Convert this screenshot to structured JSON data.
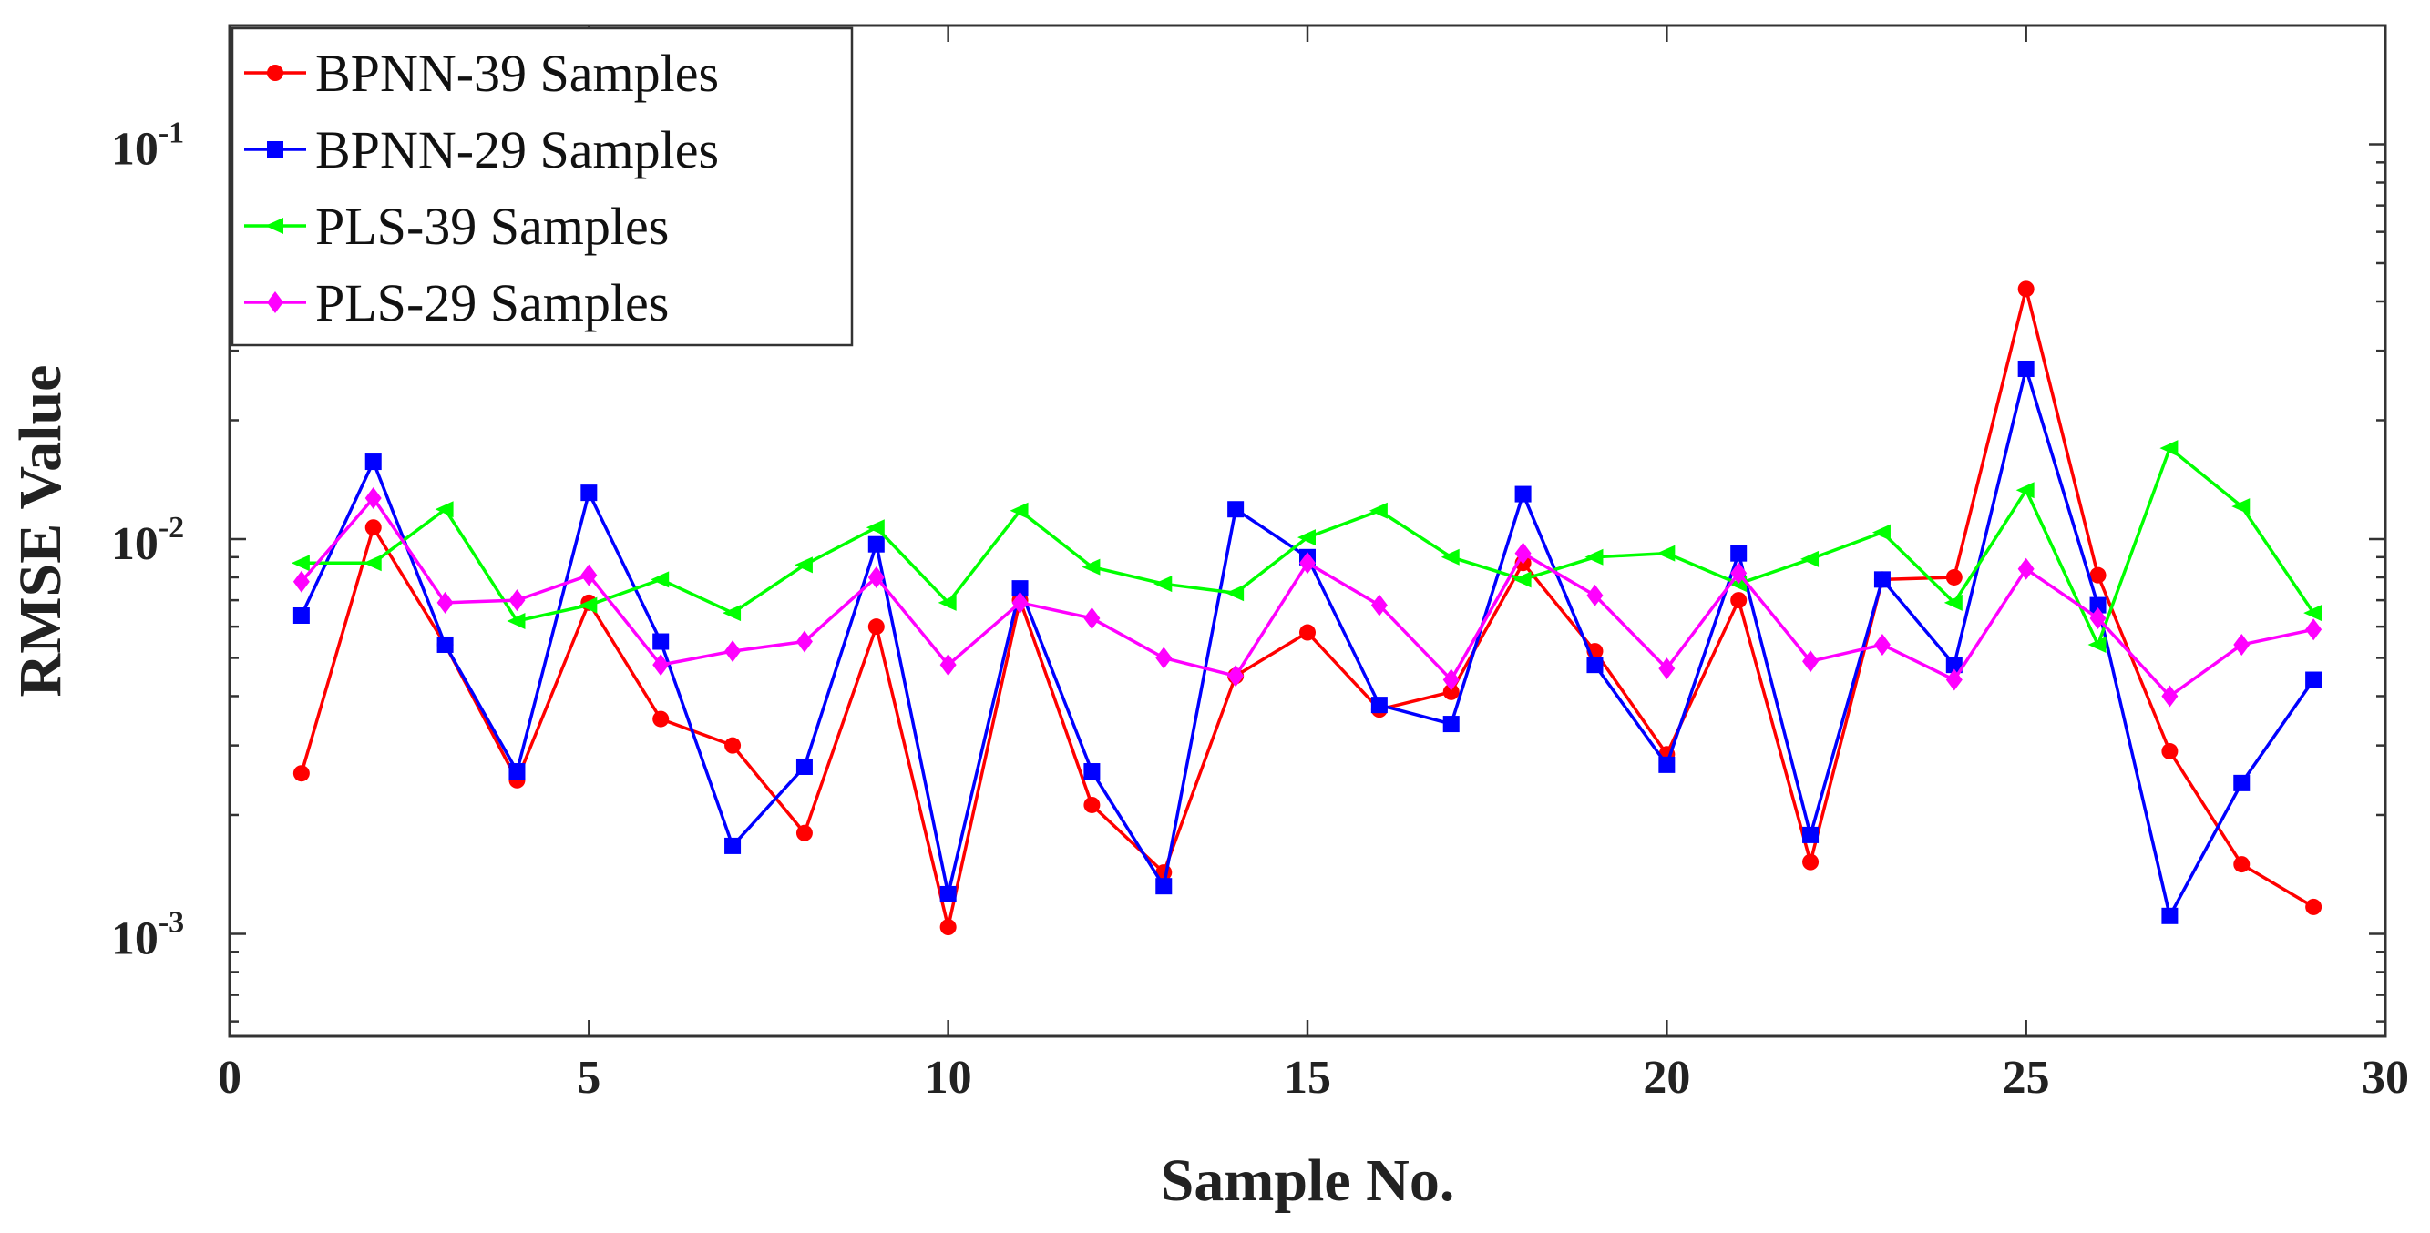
{
  "chart_data": {
    "type": "line",
    "title": "",
    "xlabel": "Sample No.",
    "ylabel": "RMSE Value",
    "yscale": "log",
    "xlim": [
      0,
      30
    ],
    "ylim": [
      0.00055,
      0.2
    ],
    "xticks": [
      0,
      5,
      10,
      15,
      20,
      25,
      30
    ],
    "yticks": [
      {
        "value": 0.1,
        "base": "10",
        "exp": "-1"
      },
      {
        "value": 0.01,
        "base": "10",
        "exp": "-2"
      },
      {
        "value": 0.001,
        "base": "10",
        "exp": "-3"
      }
    ],
    "grid": false,
    "legend": "top-left",
    "x": [
      1,
      2,
      3,
      4,
      5,
      6,
      7,
      8,
      9,
      10,
      11,
      12,
      13,
      14,
      15,
      16,
      17,
      18,
      19,
      20,
      21,
      22,
      23,
      24,
      25,
      26,
      27,
      28,
      29
    ],
    "series": [
      {
        "name": "BPNN-39 Samples",
        "color": "#ff0000",
        "marker": "circle",
        "values": [
          0.00255,
          0.0107,
          0.0054,
          0.00245,
          0.0069,
          0.0035,
          0.003,
          0.0018,
          0.006,
          0.00104,
          0.007,
          0.00212,
          0.00143,
          0.0045,
          0.0058,
          0.0037,
          0.0041,
          0.0087,
          0.0052,
          0.00285,
          0.007,
          0.00152,
          0.0079,
          0.008,
          0.043,
          0.0081,
          0.0029,
          0.0015,
          0.00117
        ]
      },
      {
        "name": "BPNN-29 Samples",
        "color": "#0000ff",
        "marker": "square",
        "values": [
          0.0064,
          0.0157,
          0.0054,
          0.00258,
          0.0131,
          0.0055,
          0.00167,
          0.00265,
          0.0097,
          0.00126,
          0.0075,
          0.00258,
          0.00132,
          0.0119,
          0.009,
          0.0038,
          0.0034,
          0.013,
          0.0048,
          0.00268,
          0.0092,
          0.00178,
          0.0079,
          0.0048,
          0.027,
          0.0068,
          0.00111,
          0.00241,
          0.0044
        ]
      },
      {
        "name": "PLS-39 Samples",
        "color": "#00ff00",
        "marker": "triangle-left",
        "values": [
          0.0087,
          0.0087,
          0.0119,
          0.0062,
          0.0068,
          0.0079,
          0.0065,
          0.0086,
          0.0107,
          0.0069,
          0.0118,
          0.0085,
          0.0077,
          0.0073,
          0.0101,
          0.0118,
          0.009,
          0.0079,
          0.009,
          0.0092,
          0.0077,
          0.0089,
          0.0104,
          0.0069,
          0.0133,
          0.0054,
          0.017,
          0.0121,
          0.0065
        ]
      },
      {
        "name": "PLS-29 Samples",
        "color": "#ff00ff",
        "marker": "diamond",
        "values": [
          0.0078,
          0.0127,
          0.0069,
          0.007,
          0.0081,
          0.0048,
          0.0052,
          0.0055,
          0.008,
          0.0048,
          0.0069,
          0.0063,
          0.005,
          0.0045,
          0.0087,
          0.0068,
          0.0044,
          0.0092,
          0.0072,
          0.0047,
          0.0082,
          0.0049,
          0.0054,
          0.0044,
          0.0084,
          0.0063,
          0.004,
          0.0054,
          0.0059
        ]
      }
    ]
  }
}
